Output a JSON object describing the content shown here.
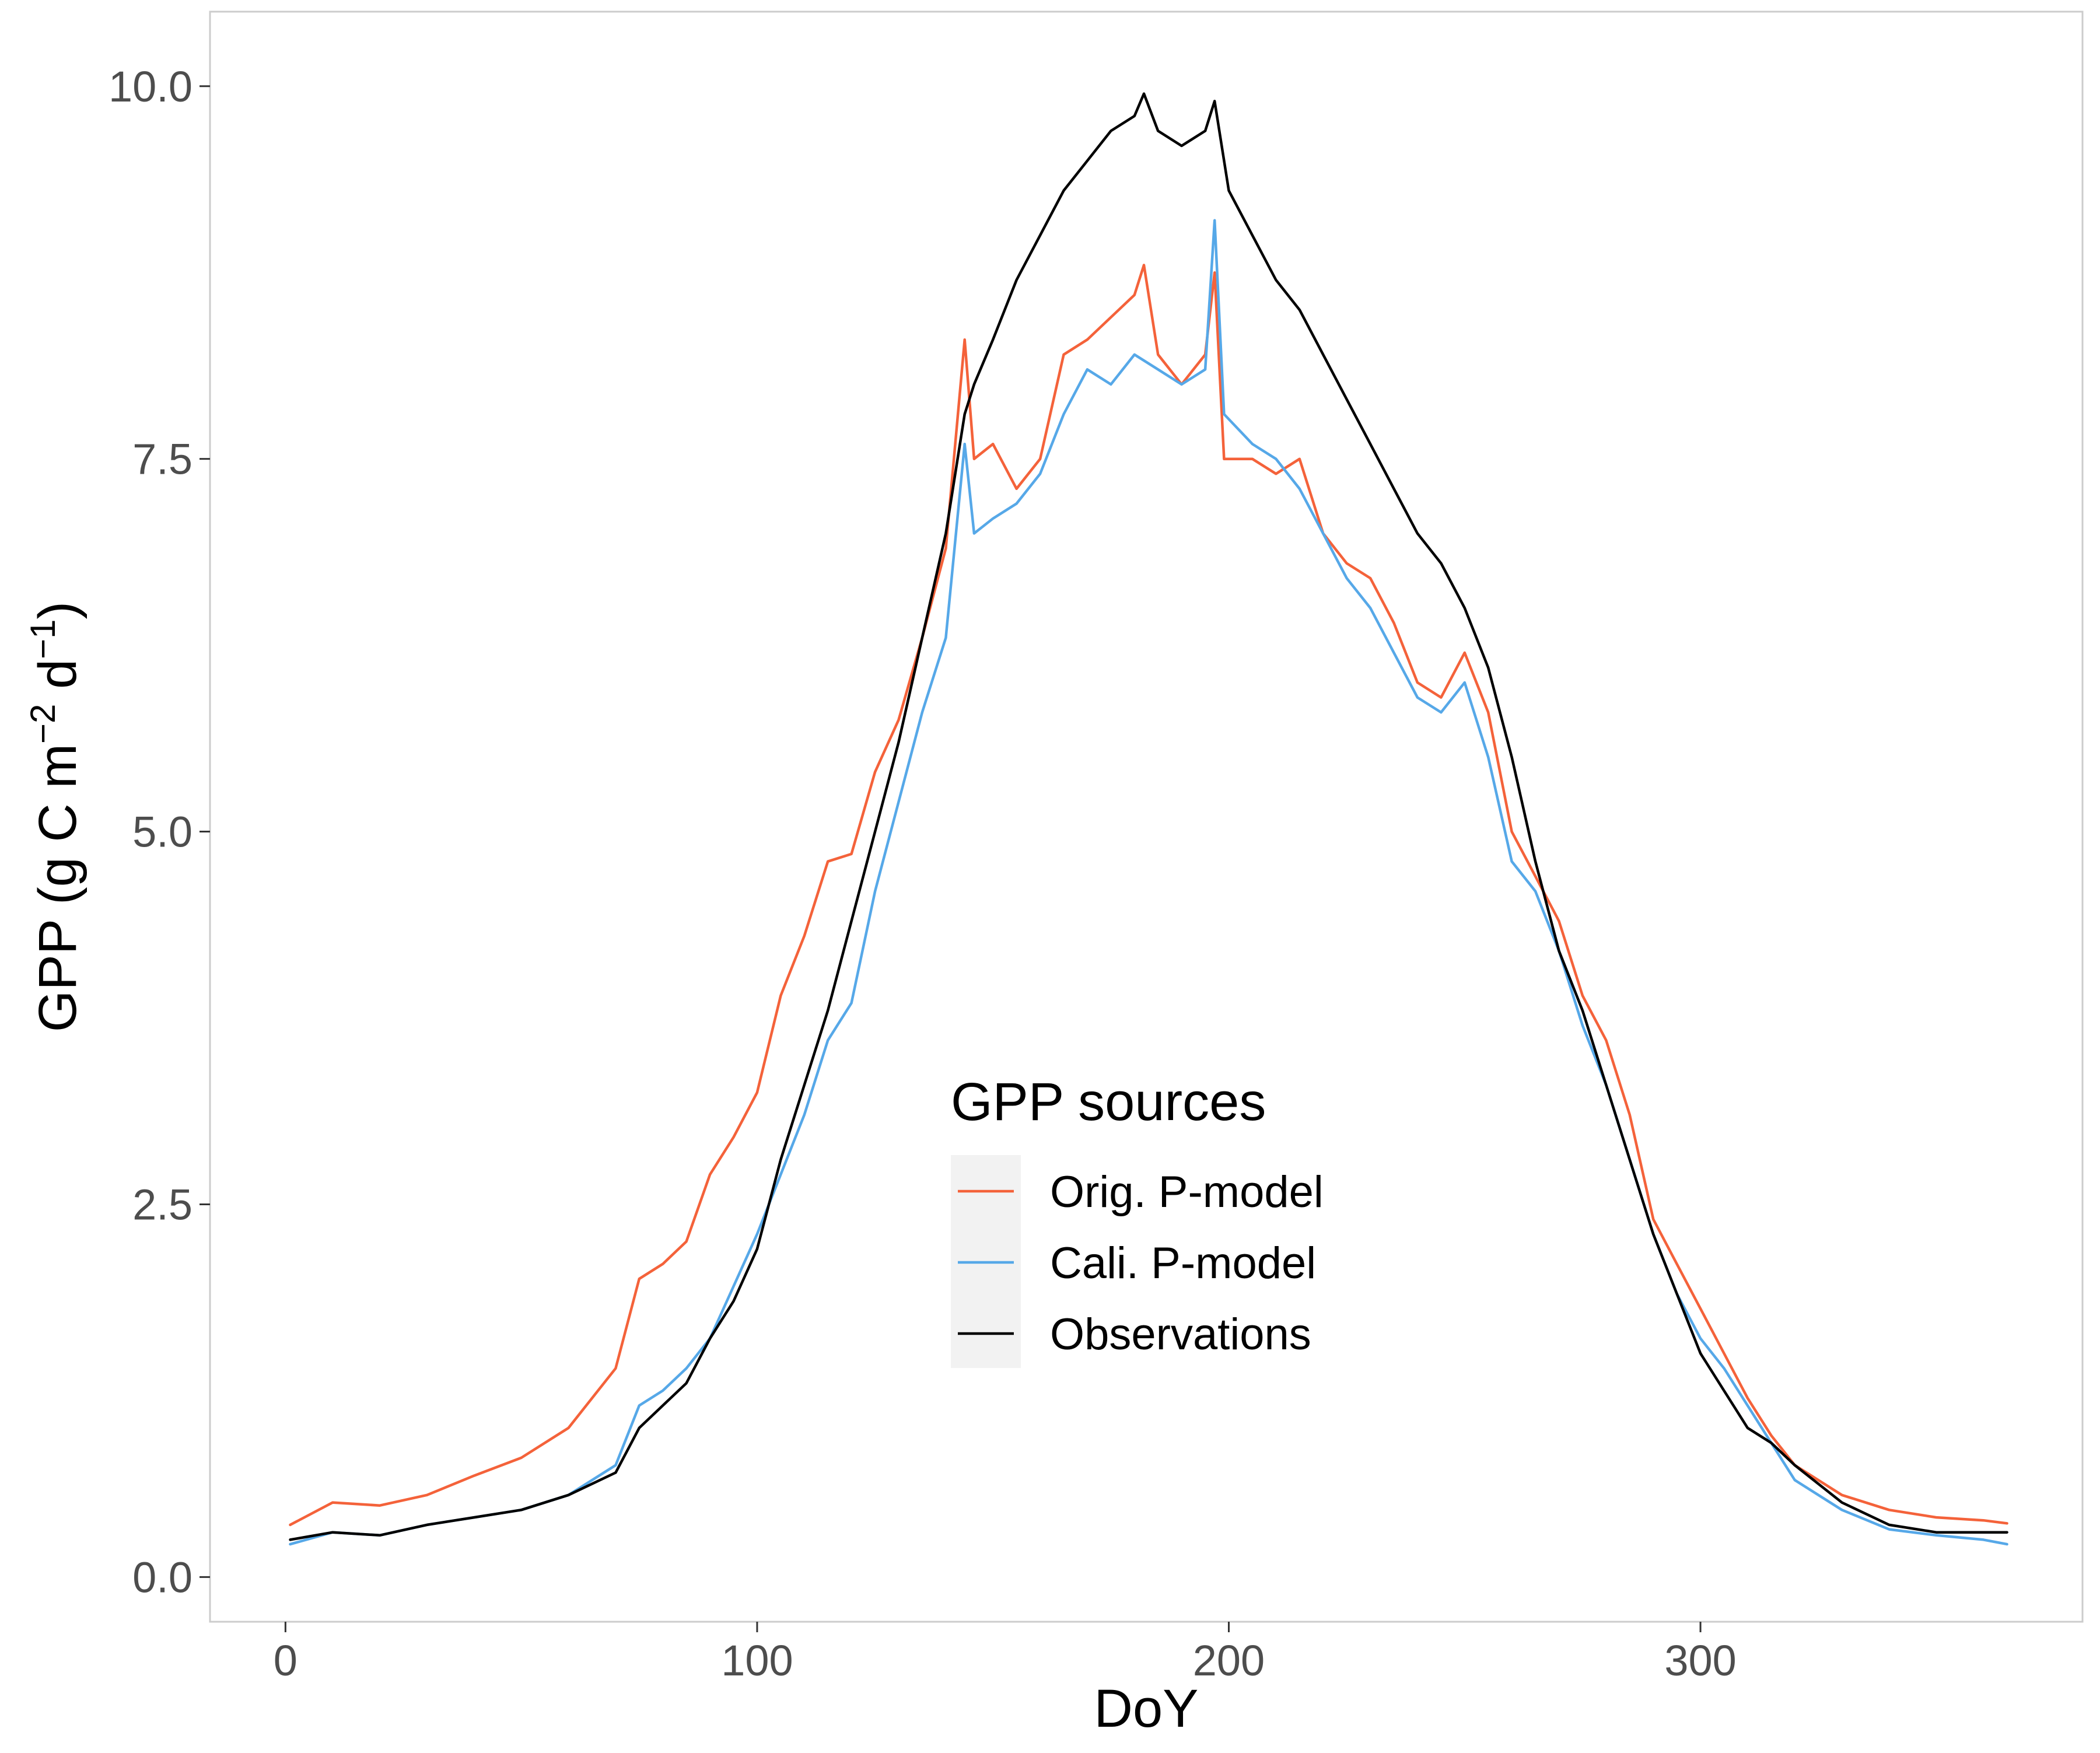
{
  "chart_data": {
    "type": "line",
    "xlabel": "DoY",
    "ylabel_main": "GPP (g C m",
    "ylabel_sup1": "−2",
    "ylabel_mid": " d",
    "ylabel_sup2": "−1",
    "ylabel_end": ")",
    "xlim": [
      -16,
      381
    ],
    "ylim": [
      -0.3,
      10.5
    ],
    "x_ticks": [
      0,
      100,
      200,
      300
    ],
    "x_tick_labels": [
      "0",
      "100",
      "200",
      "300"
    ],
    "y_ticks": [
      0.0,
      2.5,
      5.0,
      7.5,
      10.0
    ],
    "y_tick_labels": [
      "0.0",
      "2.5",
      "5.0",
      "7.5",
      "10.0"
    ],
    "grid": false,
    "legend": {
      "title": "GPP sources",
      "placement": "inside-center",
      "entries": [
        "Orig. P-model",
        "Cali. P-model",
        "Observations"
      ]
    },
    "series": [
      {
        "name": "Orig. P-model",
        "color": "#f4623a",
        "x": [
          1,
          10,
          20,
          30,
          40,
          50,
          60,
          70,
          75,
          80,
          85,
          90,
          95,
          100,
          105,
          110,
          115,
          120,
          125,
          130,
          135,
          140,
          144,
          146,
          150,
          155,
          160,
          165,
          170,
          175,
          180,
          182,
          185,
          190,
          195,
          197,
          199,
          205,
          210,
          215,
          220,
          225,
          230,
          235,
          240,
          245,
          250,
          255,
          260,
          265,
          270,
          275,
          280,
          285,
          290,
          295,
          300,
          305,
          310,
          315,
          320,
          330,
          340,
          350,
          360,
          365
        ],
        "y": [
          0.35,
          0.5,
          0.48,
          0.55,
          0.68,
          0.8,
          1.0,
          1.4,
          2.0,
          2.1,
          2.25,
          2.7,
          2.95,
          3.25,
          3.9,
          4.3,
          4.8,
          4.85,
          5.4,
          5.75,
          6.3,
          6.9,
          8.3,
          7.5,
          7.6,
          7.3,
          7.5,
          8.2,
          8.3,
          8.45,
          8.6,
          8.8,
          8.2,
          8.0,
          8.2,
          8.75,
          7.5,
          7.5,
          7.4,
          7.5,
          7.0,
          6.8,
          6.7,
          6.4,
          6.0,
          5.9,
          6.2,
          5.8,
          5.0,
          4.7,
          4.4,
          3.9,
          3.6,
          3.1,
          2.4,
          2.1,
          1.8,
          1.5,
          1.2,
          0.95,
          0.75,
          0.55,
          0.45,
          0.4,
          0.38,
          0.36
        ]
      },
      {
        "name": "Cali. P-model",
        "color": "#56a8e8",
        "x": [
          1,
          10,
          20,
          30,
          40,
          50,
          60,
          70,
          75,
          80,
          85,
          90,
          95,
          100,
          105,
          110,
          115,
          120,
          125,
          130,
          135,
          140,
          144,
          146,
          150,
          155,
          160,
          165,
          170,
          175,
          180,
          185,
          190,
          195,
          197,
          199,
          205,
          210,
          215,
          220,
          225,
          230,
          235,
          240,
          245,
          250,
          255,
          260,
          265,
          270,
          275,
          280,
          285,
          290,
          295,
          300,
          305,
          310,
          315,
          320,
          330,
          340,
          350,
          360,
          365
        ],
        "y": [
          0.22,
          0.3,
          0.28,
          0.35,
          0.4,
          0.45,
          0.55,
          0.75,
          1.15,
          1.25,
          1.4,
          1.6,
          1.95,
          2.3,
          2.7,
          3.1,
          3.6,
          3.85,
          4.6,
          5.2,
          5.8,
          6.3,
          7.6,
          7.0,
          7.1,
          7.2,
          7.4,
          7.8,
          8.1,
          8.0,
          8.2,
          8.1,
          8.0,
          8.1,
          9.1,
          7.8,
          7.6,
          7.5,
          7.3,
          7.0,
          6.7,
          6.5,
          6.2,
          5.9,
          5.8,
          6.0,
          5.5,
          4.8,
          4.6,
          4.2,
          3.7,
          3.3,
          2.8,
          2.3,
          1.9,
          1.6,
          1.4,
          1.15,
          0.9,
          0.65,
          0.45,
          0.32,
          0.28,
          0.25,
          0.22
        ]
      },
      {
        "name": "Observations",
        "color": "#000000",
        "x": [
          1,
          10,
          20,
          30,
          40,
          50,
          60,
          70,
          75,
          80,
          85,
          90,
          95,
          100,
          105,
          110,
          115,
          120,
          125,
          130,
          135,
          140,
          144,
          146,
          150,
          155,
          160,
          165,
          170,
          175,
          180,
          182,
          185,
          190,
          195,
          197,
          200,
          205,
          210,
          215,
          220,
          225,
          230,
          235,
          240,
          245,
          250,
          255,
          260,
          265,
          270,
          275,
          280,
          285,
          290,
          295,
          300,
          305,
          310,
          315,
          320,
          330,
          340,
          350,
          360,
          365
        ],
        "y": [
          0.25,
          0.3,
          0.28,
          0.35,
          0.4,
          0.45,
          0.55,
          0.7,
          1.0,
          1.15,
          1.3,
          1.6,
          1.85,
          2.2,
          2.8,
          3.3,
          3.8,
          4.4,
          5.0,
          5.6,
          6.3,
          7.0,
          7.8,
          8.0,
          8.3,
          8.7,
          9.0,
          9.3,
          9.5,
          9.7,
          9.8,
          9.95,
          9.7,
          9.6,
          9.7,
          9.9,
          9.3,
          9.0,
          8.7,
          8.5,
          8.2,
          7.9,
          7.6,
          7.3,
          7.0,
          6.8,
          6.5,
          6.1,
          5.5,
          4.8,
          4.2,
          3.8,
          3.3,
          2.8,
          2.3,
          1.9,
          1.5,
          1.25,
          1.0,
          0.9,
          0.75,
          0.5,
          0.35,
          0.3,
          0.3,
          0.3
        ]
      }
    ]
  }
}
